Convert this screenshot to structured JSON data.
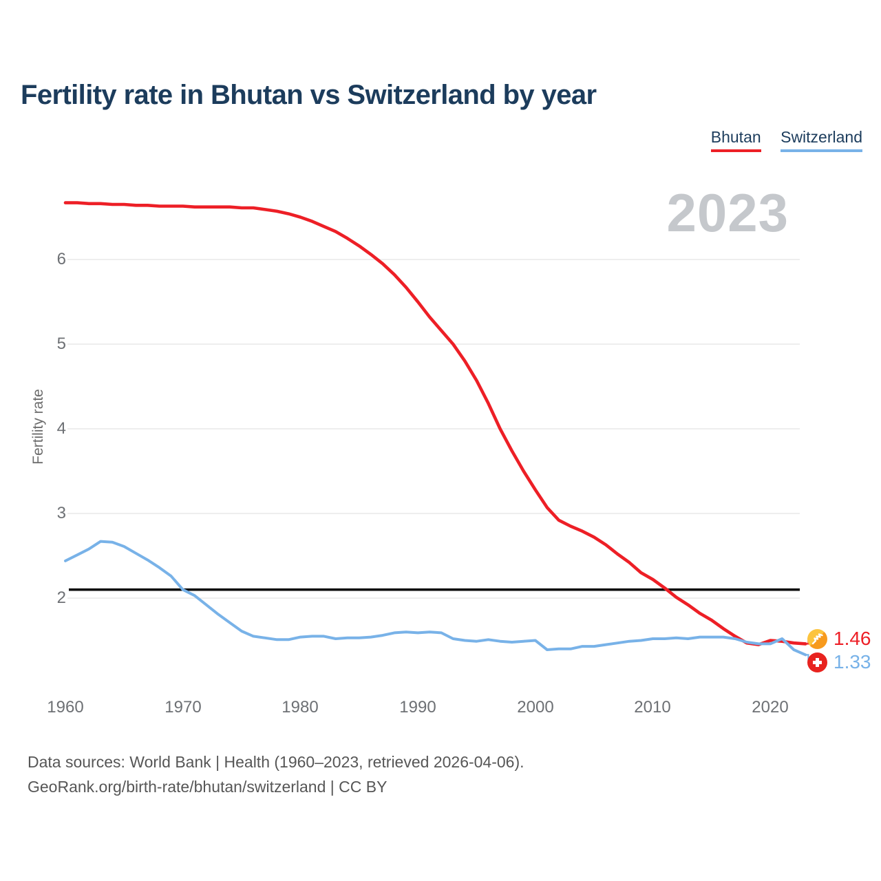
{
  "title": "Fertility rate in Bhutan vs Switzerland by year",
  "watermark": "2023",
  "legend": [
    {
      "label": "Bhutan",
      "color": "#ed1f26"
    },
    {
      "label": "Switzerland",
      "color": "#78b2e8"
    }
  ],
  "y_axis": {
    "label": "Fertility rate",
    "ticks": [
      "2",
      "3",
      "4",
      "5",
      "6"
    ]
  },
  "x_axis": {
    "ticks": [
      "1960",
      "1970",
      "1980",
      "1990",
      "2000",
      "2010",
      "2020"
    ]
  },
  "end_labels": [
    {
      "series": "Bhutan",
      "value": "1.46",
      "flag": "bhutan-flag"
    },
    {
      "series": "Switzerland",
      "value": "1.33",
      "flag": "switzerland-flag"
    }
  ],
  "footer": {
    "line1": "Data sources: World Bank | Health (1960–2023, retrieved 2026-04-06).",
    "line2": "GeoRank.org/birth-rate/bhutan/switzerland | CC BY"
  },
  "chart_data": {
    "type": "line",
    "title": "Fertility rate in Bhutan vs Switzerland by year",
    "xlabel": "",
    "ylabel": "Fertility rate",
    "xlim": [
      1960,
      2023
    ],
    "ylim": [
      1.2,
      6.9
    ],
    "x_ticks": [
      1960,
      1970,
      1980,
      1990,
      2000,
      2010,
      2020
    ],
    "y_ticks": [
      2,
      3,
      4,
      5,
      6
    ],
    "grid": "horizontal",
    "legend_position": "top-right",
    "annotation_year": "2023",
    "replacement_line": 2.1,
    "years": [
      1960,
      1961,
      1962,
      1963,
      1964,
      1965,
      1966,
      1967,
      1968,
      1969,
      1970,
      1971,
      1972,
      1973,
      1974,
      1975,
      1976,
      1977,
      1978,
      1979,
      1980,
      1981,
      1982,
      1983,
      1984,
      1985,
      1986,
      1987,
      1988,
      1989,
      1990,
      1991,
      1992,
      1993,
      1994,
      1995,
      1996,
      1997,
      1998,
      1999,
      2000,
      2001,
      2002,
      2003,
      2004,
      2005,
      2006,
      2007,
      2008,
      2009,
      2010,
      2011,
      2012,
      2013,
      2014,
      2015,
      2016,
      2017,
      2018,
      2019,
      2020,
      2021,
      2022,
      2023
    ],
    "series": [
      {
        "name": "Bhutan",
        "color": "#ed1f26",
        "end_value": 1.46,
        "values": [
          6.67,
          6.67,
          6.66,
          6.66,
          6.65,
          6.65,
          6.64,
          6.64,
          6.63,
          6.63,
          6.63,
          6.62,
          6.62,
          6.62,
          6.62,
          6.61,
          6.61,
          6.59,
          6.57,
          6.54,
          6.5,
          6.45,
          6.39,
          6.33,
          6.25,
          6.16,
          6.06,
          5.95,
          5.82,
          5.67,
          5.5,
          5.32,
          5.16,
          5.0,
          4.8,
          4.57,
          4.3,
          4.0,
          3.74,
          3.5,
          3.28,
          3.07,
          2.92,
          2.85,
          2.79,
          2.72,
          2.63,
          2.52,
          2.42,
          2.3,
          2.22,
          2.12,
          2.01,
          1.92,
          1.82,
          1.74,
          1.64,
          1.55,
          1.47,
          1.45,
          1.5,
          1.49,
          1.47,
          1.46
        ]
      },
      {
        "name": "Switzerland",
        "color": "#78b2e8",
        "end_value": 1.33,
        "values": [
          2.44,
          2.51,
          2.58,
          2.67,
          2.66,
          2.61,
          2.53,
          2.45,
          2.36,
          2.26,
          2.1,
          2.03,
          1.92,
          1.81,
          1.71,
          1.61,
          1.55,
          1.53,
          1.51,
          1.51,
          1.54,
          1.55,
          1.55,
          1.52,
          1.53,
          1.53,
          1.54,
          1.56,
          1.59,
          1.6,
          1.59,
          1.6,
          1.59,
          1.52,
          1.5,
          1.49,
          1.51,
          1.49,
          1.48,
          1.49,
          1.5,
          1.39,
          1.4,
          1.4,
          1.43,
          1.43,
          1.45,
          1.47,
          1.49,
          1.5,
          1.52,
          1.52,
          1.53,
          1.52,
          1.54,
          1.54,
          1.54,
          1.52,
          1.48,
          1.46,
          1.46,
          1.52,
          1.39,
          1.33
        ]
      }
    ]
  }
}
